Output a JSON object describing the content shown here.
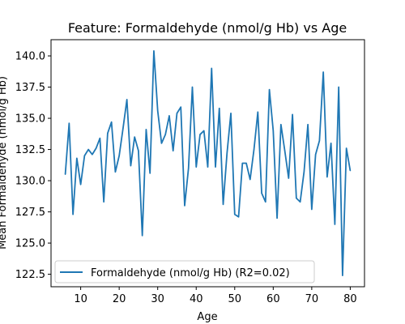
{
  "chart_data": {
    "type": "line",
    "title": "Feature: Formaldehyde (nmol/g Hb) vs Age",
    "xlabel": "Age",
    "ylabel": "Mean Formaldehyde (nmol/g Hb)",
    "xlim": [
      2.3,
      83.7
    ],
    "ylim": [
      121.5,
      141.3
    ],
    "xticks": [
      10,
      20,
      30,
      40,
      50,
      60,
      70,
      80
    ],
    "yticks": [
      122.5,
      125.0,
      127.5,
      130.0,
      132.5,
      135.0,
      137.5,
      140.0
    ],
    "ytick_labels": [
      "122.5",
      "125.0",
      "127.5",
      "130.0",
      "132.5",
      "135.0",
      "137.5",
      "140.0"
    ],
    "grid": false,
    "legend_position": "lower-left",
    "series": [
      {
        "name": "Formaldehyde (nmol/g Hb) (R2=0.02)",
        "color": "#1f77b4",
        "x": [
          6,
          7,
          8,
          9,
          10,
          11,
          12,
          13,
          14,
          15,
          16,
          17,
          18,
          19,
          20,
          21,
          22,
          23,
          24,
          25,
          26,
          27,
          28,
          29,
          30,
          31,
          32,
          33,
          34,
          35,
          36,
          37,
          38,
          39,
          40,
          41,
          42,
          43,
          44,
          45,
          46,
          47,
          48,
          49,
          50,
          51,
          52,
          53,
          54,
          55,
          56,
          57,
          58,
          59,
          60,
          61,
          62,
          63,
          64,
          65,
          66,
          67,
          68,
          69,
          70,
          71,
          72,
          73,
          74,
          75,
          76,
          77,
          78,
          79,
          80
        ],
        "y": [
          130.5,
          134.6,
          127.3,
          131.8,
          129.7,
          132.0,
          132.5,
          132.1,
          132.6,
          133.4,
          128.3,
          133.8,
          134.7,
          130.7,
          132.0,
          134.2,
          136.5,
          131.2,
          133.5,
          132.4,
          125.6,
          134.1,
          130.6,
          140.4,
          135.6,
          133.0,
          133.7,
          135.2,
          132.4,
          135.4,
          135.9,
          128.0,
          131.0,
          137.5,
          131.1,
          133.7,
          134.0,
          131.1,
          139.0,
          131.1,
          135.8,
          128.1,
          132.2,
          135.4,
          127.3,
          127.1,
          131.4,
          131.4,
          130.1,
          132.5,
          135.5,
          129.0,
          128.3,
          137.3,
          134.0,
          127.0,
          134.5,
          132.4,
          130.2,
          135.3,
          128.6,
          128.3,
          130.7,
          134.5,
          127.7,
          132.1,
          133.2,
          138.7,
          130.3,
          133.0,
          126.5,
          137.5,
          122.4,
          132.6,
          130.8
        ]
      }
    ]
  }
}
